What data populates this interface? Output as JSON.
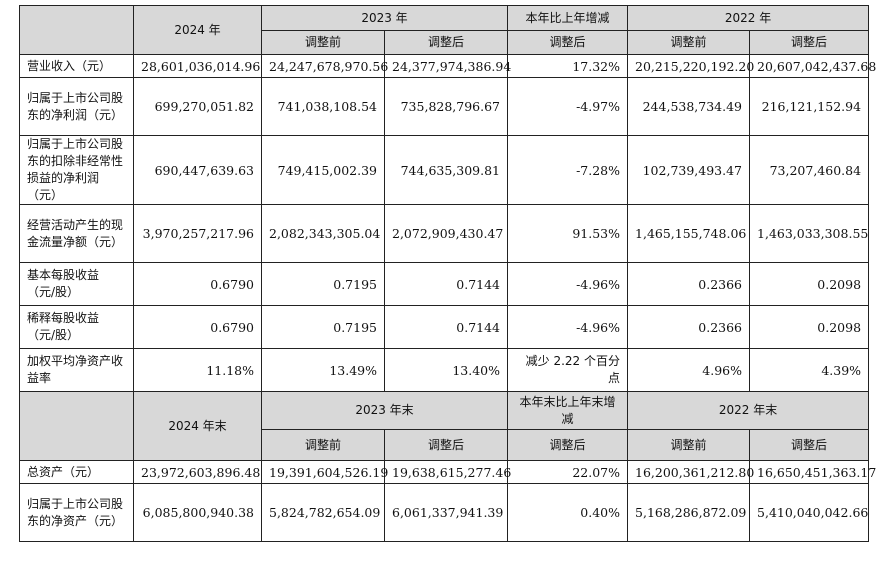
{
  "header1": {
    "y2024": "2024 年",
    "y2023": "2023 年",
    "yoy": "本年比上年增减",
    "y2022": "2022 年",
    "before": "调整前",
    "after": "调整后"
  },
  "rows1": [
    {
      "label": "营业收入（元）",
      "v2024": "28,601,036,014.96",
      "b2023": "24,247,678,970.56",
      "a2023": "24,377,974,386.94",
      "chg": "17.32%",
      "b2022": "20,215,220,192.20",
      "a2022": "20,607,042,437.68"
    },
    {
      "label": "归属于上市公司股东的净利润（元）",
      "v2024": "699,270,051.82",
      "b2023": "741,038,108.54",
      "a2023": "735,828,796.67",
      "chg": "-4.97%",
      "b2022": "244,538,734.49",
      "a2022": "216,121,152.94"
    },
    {
      "label": "归属于上市公司股东的扣除非经常性损益的净利润（元）",
      "v2024": "690,447,639.63",
      "b2023": "749,415,002.39",
      "a2023": "744,635,309.81",
      "chg": "-7.28%",
      "b2022": "102,739,493.47",
      "a2022": "73,207,460.84"
    },
    {
      "label": "经营活动产生的现金流量净额（元）",
      "v2024": "3,970,257,217.96",
      "b2023": "2,082,343,305.04",
      "a2023": "2,072,909,430.47",
      "chg": "91.53%",
      "b2022": "1,465,155,748.06",
      "a2022": "1,463,033,308.55"
    },
    {
      "label": "基本每股收益（元/股）",
      "v2024": "0.6790",
      "b2023": "0.7195",
      "a2023": "0.7144",
      "chg": "-4.96%",
      "b2022": "0.2366",
      "a2022": "0.2098"
    },
    {
      "label": "稀释每股收益（元/股）",
      "v2024": "0.6790",
      "b2023": "0.7195",
      "a2023": "0.7144",
      "chg": "-4.96%",
      "b2022": "0.2366",
      "a2022": "0.2098"
    },
    {
      "label": "加权平均净资产收益率",
      "v2024": "11.18%",
      "b2023": "13.49%",
      "a2023": "13.40%",
      "chg": "减少 2.22 个百分点",
      "b2022": "4.96%",
      "a2022": "4.39%"
    }
  ],
  "header2": {
    "y2024": "2024 年末",
    "y2023": "2023 年末",
    "yoy": "本年末比上年末增减",
    "y2022": "2022 年末",
    "before": "调整前",
    "after": "调整后"
  },
  "rows2": [
    {
      "label": "总资产（元）",
      "v2024": "23,972,603,896.48",
      "b2023": "19,391,604,526.19",
      "a2023": "19,638,615,277.46",
      "chg": "22.07%",
      "b2022": "16,200,361,212.80",
      "a2022": "16,650,451,363.17"
    },
    {
      "label": "归属于上市公司股东的净资产（元）",
      "v2024": "6,085,800,940.38",
      "b2023": "5,824,782,654.09",
      "a2023": "6,061,337,941.39",
      "chg": "0.40%",
      "b2022": "5,168,286,872.09",
      "a2022": "5,410,040,042.66"
    }
  ]
}
